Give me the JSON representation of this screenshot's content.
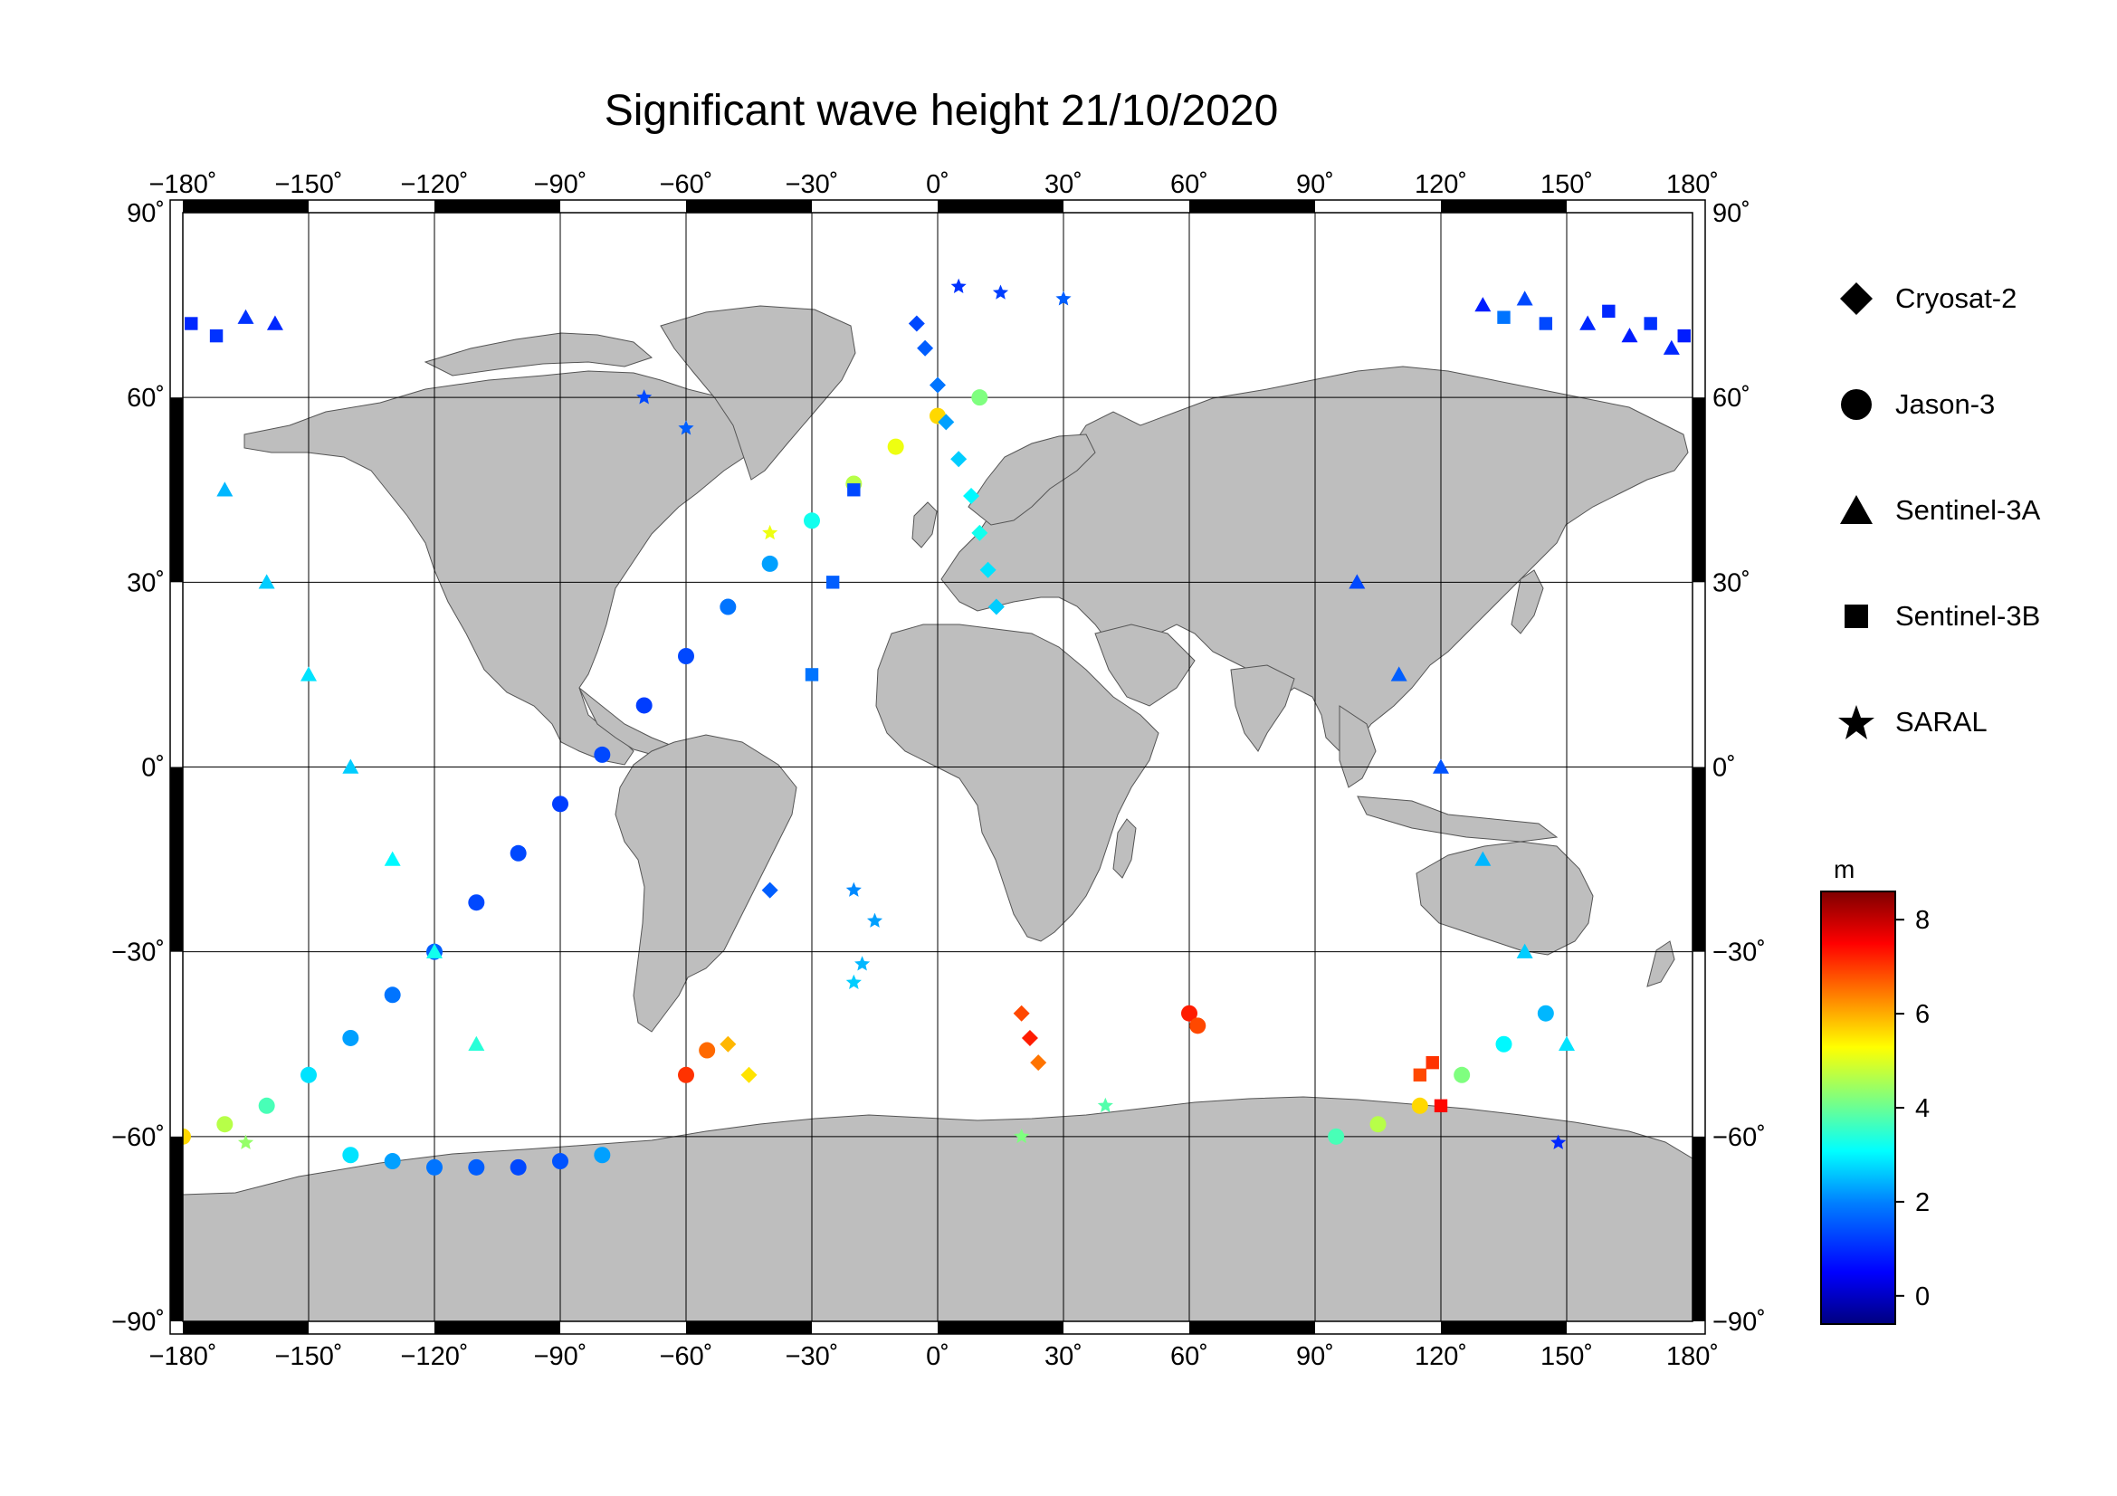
{
  "title": "Significant wave height 21/10/2020",
  "map": {
    "projection": "plate-carree",
    "lon_range": [
      -180,
      180
    ],
    "lat_range": [
      -90,
      90
    ],
    "lon_ticks": [
      -180,
      -150,
      -120,
      -90,
      -60,
      -30,
      0,
      30,
      60,
      90,
      120,
      150,
      180
    ],
    "lat_ticks": [
      -90,
      -60,
      -30,
      0,
      30,
      60,
      90
    ],
    "lon_tick_labels": [
      "−180˚",
      "−150˚",
      "−120˚",
      "−90˚",
      "−60˚",
      "−30˚",
      "0˚",
      "30˚",
      "60˚",
      "90˚",
      "120˚",
      "150˚",
      "180˚"
    ],
    "lat_tick_labels": [
      "−90˚",
      "−60˚",
      "−30˚",
      "0˚",
      "30˚",
      "60˚",
      "90˚"
    ],
    "grid": true,
    "land_color": "#bebebe",
    "ocean_color": "#ffffff"
  },
  "legend": {
    "items": [
      {
        "label": "Cryosat-2",
        "symbol": "diamond"
      },
      {
        "label": "Jason-3",
        "symbol": "circle"
      },
      {
        "label": "Sentinel-3A",
        "symbol": "triangle"
      },
      {
        "label": "Sentinel-3B",
        "symbol": "square"
      },
      {
        "label": "SARAL",
        "symbol": "star"
      }
    ]
  },
  "colorbar": {
    "unit": "m",
    "min": -0.6,
    "max": 8.6,
    "ticks": [
      0,
      2,
      4,
      6,
      8
    ],
    "tick_labels": [
      "0",
      "2",
      "4",
      "6",
      "8"
    ],
    "colormap": [
      "#00007f",
      "#0000ff",
      "#007fff",
      "#00ffff",
      "#7fff7f",
      "#ffff00",
      "#ff7f00",
      "#ff0000",
      "#7f0000"
    ]
  },
  "chart_data": {
    "type": "scatter",
    "x_quantity": "longitude",
    "y_quantity": "latitude",
    "value_quantity": "significant wave height (m)",
    "series": [
      {
        "name": "Jason-3",
        "symbol": "circle",
        "points": [
          [
            -180,
            -60,
            5.5
          ],
          [
            -170,
            -58,
            4.5
          ],
          [
            -160,
            -55,
            3.5
          ],
          [
            -150,
            -50,
            2.6
          ],
          [
            -140,
            -44,
            2.0
          ],
          [
            -130,
            -37,
            1.6
          ],
          [
            -120,
            -30,
            1.4
          ],
          [
            -110,
            -22,
            1.2
          ],
          [
            -100,
            -14,
            1.2
          ],
          [
            -90,
            -6,
            1.1
          ],
          [
            -80,
            2,
            1.2
          ],
          [
            -70,
            10,
            1.1
          ],
          [
            -60,
            18,
            1.2
          ],
          [
            -50,
            26,
            1.6
          ],
          [
            -40,
            33,
            2.0
          ],
          [
            -30,
            40,
            3.0
          ],
          [
            -20,
            46,
            4.5
          ],
          [
            -10,
            52,
            5.0
          ],
          [
            0,
            57,
            5.5
          ],
          [
            10,
            60,
            4.0
          ],
          [
            -140,
            -63,
            2.6
          ],
          [
            -130,
            -64,
            2.0
          ],
          [
            -120,
            -65,
            1.6
          ],
          [
            -110,
            -65,
            1.4
          ],
          [
            -100,
            -65,
            1.2
          ],
          [
            -90,
            -64,
            1.3
          ],
          [
            -80,
            -63,
            2.0
          ],
          [
            95,
            -60,
            3.5
          ],
          [
            105,
            -58,
            4.5
          ],
          [
            115,
            -55,
            5.5
          ],
          [
            125,
            -50,
            4.0
          ],
          [
            135,
            -45,
            2.8
          ],
          [
            145,
            -40,
            2.2
          ],
          [
            60,
            -40,
            7.2
          ],
          [
            62,
            -42,
            6.8
          ],
          [
            -60,
            -50,
            7.0
          ],
          [
            -55,
            -46,
            6.5
          ]
        ]
      },
      {
        "name": "Sentinel-3A",
        "symbol": "triangle",
        "points": [
          [
            -165,
            73,
            1.0
          ],
          [
            -158,
            72,
            0.9
          ],
          [
            130,
            75,
            0.8
          ],
          [
            140,
            76,
            1.2
          ],
          [
            155,
            72,
            0.9
          ],
          [
            165,
            70,
            0.8
          ],
          [
            175,
            68,
            0.9
          ],
          [
            -170,
            45,
            2.2
          ],
          [
            -160,
            30,
            2.4
          ],
          [
            -150,
            15,
            2.6
          ],
          [
            -140,
            0,
            2.4
          ],
          [
            -130,
            -15,
            2.8
          ],
          [
            -120,
            -30,
            3.0
          ],
          [
            -110,
            -45,
            3.2
          ],
          [
            100,
            30,
            1.2
          ],
          [
            110,
            15,
            1.4
          ],
          [
            120,
            0,
            1.3
          ],
          [
            130,
            -15,
            2.2
          ],
          [
            140,
            -30,
            2.4
          ],
          [
            150,
            -45,
            2.6
          ]
        ]
      },
      {
        "name": "Sentinel-3B",
        "symbol": "square",
        "points": [
          [
            -178,
            72,
            0.9
          ],
          [
            -172,
            70,
            1.0
          ],
          [
            135,
            73,
            1.6
          ],
          [
            145,
            72,
            1.2
          ],
          [
            160,
            74,
            0.9
          ],
          [
            170,
            72,
            1.0
          ],
          [
            178,
            70,
            0.8
          ],
          [
            115,
            -50,
            6.8
          ],
          [
            120,
            -55,
            7.4
          ],
          [
            118,
            -48,
            7.0
          ],
          [
            -20,
            45,
            1.2
          ],
          [
            -25,
            30,
            1.4
          ],
          [
            -30,
            15,
            1.6
          ]
        ]
      },
      {
        "name": "SARAL",
        "symbol": "star",
        "points": [
          [
            5,
            78,
            1.0
          ],
          [
            15,
            77,
            1.1
          ],
          [
            30,
            76,
            1.4
          ],
          [
            -40,
            38,
            5.0
          ],
          [
            -20,
            -20,
            1.8
          ],
          [
            -15,
            -25,
            2.0
          ],
          [
            -18,
            -32,
            2.2
          ],
          [
            -20,
            -35,
            2.4
          ],
          [
            148,
            -61,
            0.9
          ],
          [
            -165,
            -61,
            4.2
          ],
          [
            20,
            -60,
            4.0
          ],
          [
            40,
            -55,
            3.6
          ],
          [
            -70,
            60,
            1.2
          ],
          [
            -60,
            55,
            1.4
          ]
        ]
      },
      {
        "name": "Cryosat-2",
        "symbol": "diamond",
        "points": [
          [
            -5,
            72,
            1.2
          ],
          [
            -3,
            68,
            1.4
          ],
          [
            0,
            62,
            1.6
          ],
          [
            2,
            56,
            2.0
          ],
          [
            5,
            50,
            2.4
          ],
          [
            8,
            44,
            2.8
          ],
          [
            10,
            38,
            3.0
          ],
          [
            12,
            32,
            2.6
          ],
          [
            14,
            26,
            2.4
          ],
          [
            20,
            -40,
            6.8
          ],
          [
            22,
            -44,
            7.2
          ],
          [
            24,
            -48,
            6.4
          ],
          [
            -50,
            -45,
            5.8
          ],
          [
            -45,
            -50,
            5.4
          ],
          [
            -40,
            -20,
            1.4
          ]
        ]
      }
    ]
  }
}
